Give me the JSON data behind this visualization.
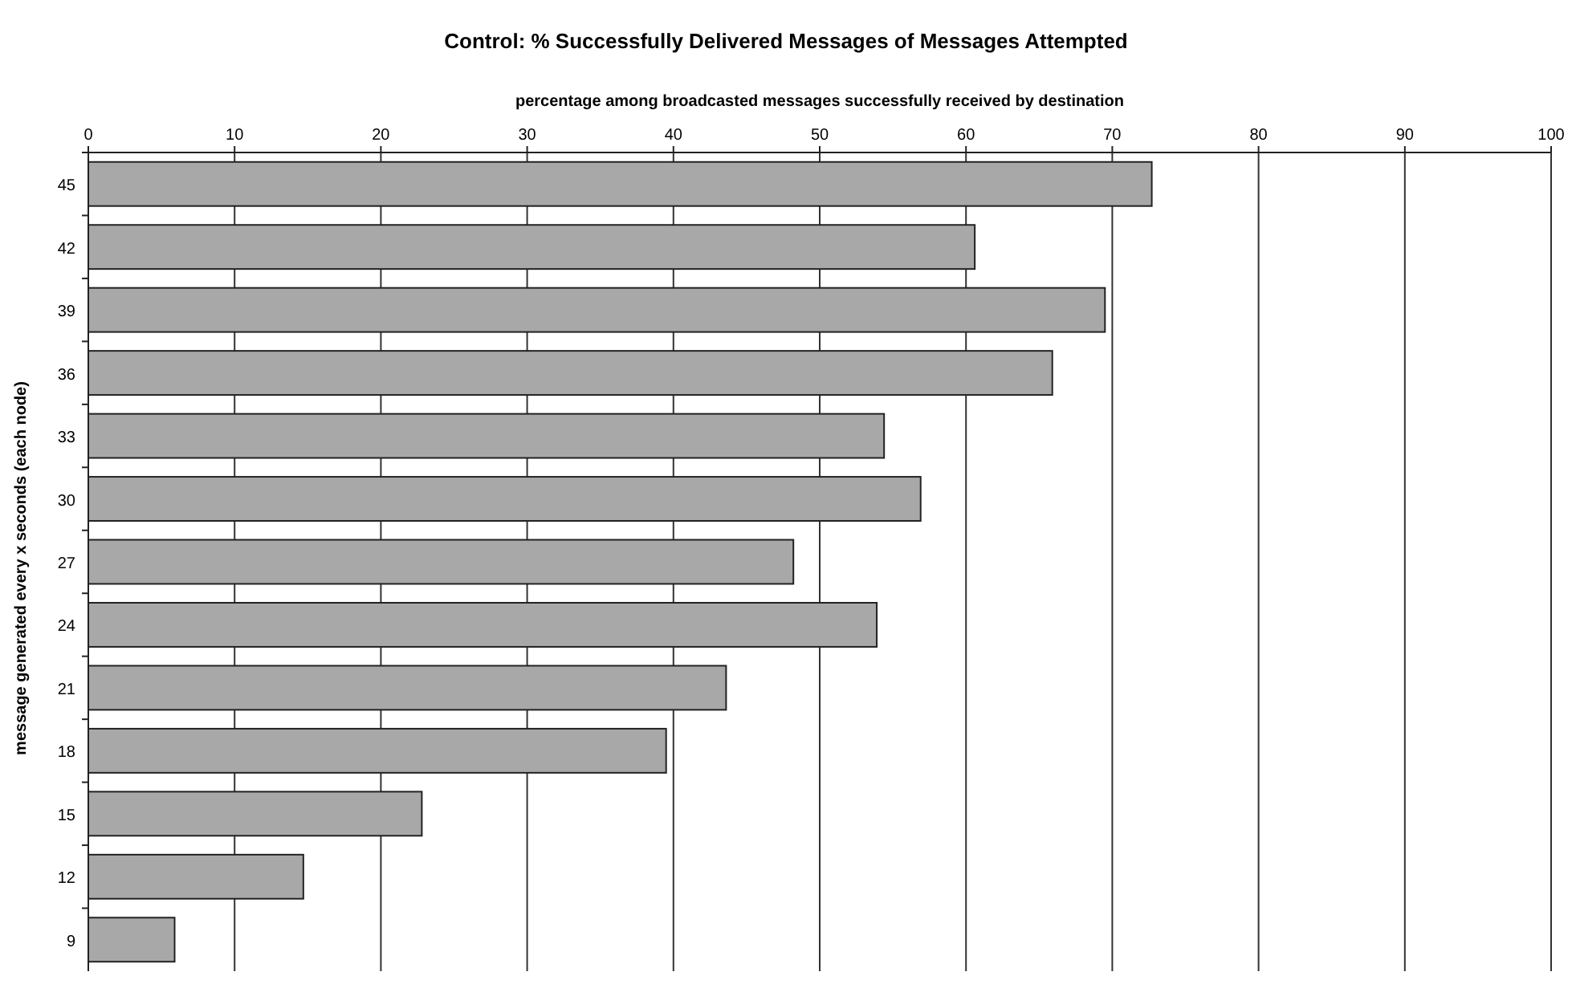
{
  "chart_data": {
    "type": "bar",
    "orientation": "horizontal",
    "title": "Control: % Successfully Delivered Messages of Messages Attempted",
    "xlabel": "percentage among broadcasted messages successfully received by destination",
    "ylabel": "message generated every x seconds (each node)",
    "categories": [
      "45",
      "42",
      "39",
      "36",
      "33",
      "30",
      "27",
      "24",
      "21",
      "18",
      "15",
      "12",
      "9"
    ],
    "values": [
      72.7,
      60.6,
      69.5,
      65.9,
      54.4,
      56.9,
      48.2,
      53.9,
      43.6,
      39.5,
      22.8,
      14.7,
      5.9
    ],
    "color": "#a8a8a8",
    "xlim": [
      0,
      100
    ],
    "xticks": [
      0,
      10,
      20,
      30,
      40,
      50,
      60,
      70,
      80,
      90,
      100
    ],
    "grid": "x"
  }
}
